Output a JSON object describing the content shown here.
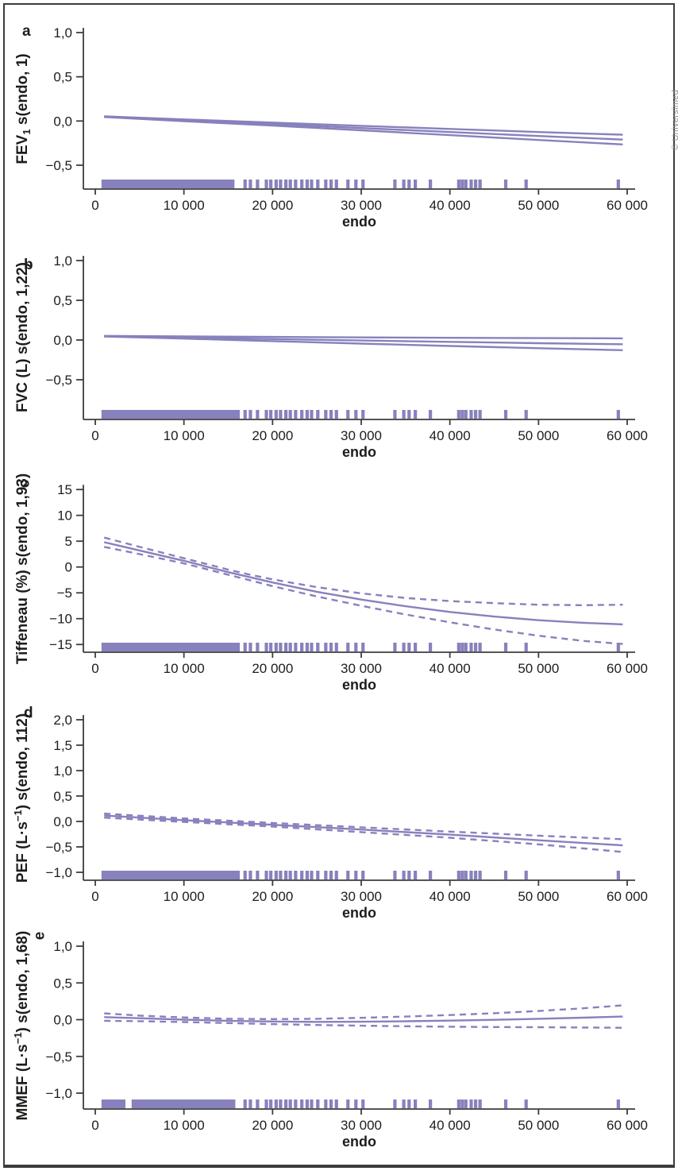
{
  "credit": "© Universimed",
  "colors": {
    "line": "#8781bd",
    "rug": "#8781bd",
    "axis": "#3d3d3d",
    "text": "#1d1d1b",
    "credit": "#8f8f8f"
  },
  "xlabel": "endo",
  "rug_ticks": [
    16900,
    17500,
    18300,
    19300,
    19800,
    20400,
    20900,
    21500,
    22000,
    22600,
    23300,
    23900,
    24400,
    25100,
    26000,
    26600,
    27200,
    28500,
    29400,
    30200,
    33800,
    34800,
    35400,
    36100,
    37800,
    41000,
    41400,
    41800,
    42400,
    42900,
    43400,
    46300,
    48600,
    59000
  ],
  "chart_data": [
    {
      "type": "line",
      "letter": "a",
      "ylabel": "FEV1 s(endo, 1)",
      "ylabel_parts": [
        {
          "t": "FEV"
        },
        {
          "t": "1",
          "v": "sub"
        },
        {
          "t": " s(endo, 1)"
        }
      ],
      "xlabel": "endo",
      "xlim": [
        0,
        60000
      ],
      "xticks": [
        0,
        10000,
        20000,
        30000,
        40000,
        50000,
        60000
      ],
      "xtick_labels": [
        "0",
        "10 000",
        "20 000",
        "30 000",
        "40 000",
        "50 000",
        "60 000"
      ],
      "yticks": [
        1.0,
        0.5,
        0.0,
        -0.5
      ],
      "ytick_labels": [
        "1,0",
        "0,5",
        "0,0",
        "−0,5"
      ],
      "series": [
        {
          "name": "upper-ci",
          "style": "solid",
          "x": [
            1000,
            10000,
            20000,
            30000,
            40000,
            50000,
            59500
          ],
          "y": [
            0.053,
            0.018,
            -0.018,
            -0.055,
            -0.09,
            -0.125,
            -0.155
          ]
        },
        {
          "name": "lower-ci",
          "style": "solid",
          "x": [
            1000,
            10000,
            20000,
            30000,
            40000,
            50000,
            59500
          ],
          "y": [
            0.045,
            -0.002,
            -0.052,
            -0.105,
            -0.16,
            -0.215,
            -0.265
          ]
        },
        {
          "name": "fit",
          "style": "solid",
          "x": [
            1000,
            10000,
            20000,
            30000,
            40000,
            50000,
            59500
          ],
          "y": [
            0.049,
            0.008,
            -0.035,
            -0.08,
            -0.125,
            -0.17,
            -0.21
          ]
        }
      ],
      "rug_segments": [
        [
          700,
          15700
        ]
      ]
    },
    {
      "type": "line",
      "letter": "b",
      "ylabel": "FVC (L) s(endo, 1,22)",
      "ylabel_parts": [
        {
          "t": "FVC (L) s(endo, 1,22)"
        }
      ],
      "xlabel": "endo",
      "xlim": [
        0,
        60000
      ],
      "xticks": [
        0,
        10000,
        20000,
        30000,
        40000,
        50000,
        60000
      ],
      "xtick_labels": [
        "0",
        "10 000",
        "20 000",
        "30 000",
        "40 000",
        "50 000",
        "60 000"
      ],
      "yticks": [
        1.0,
        0.5,
        0.0,
        -0.5
      ],
      "ytick_labels": [
        "1,0",
        "0,5",
        "0,0",
        "−0,5"
      ],
      "series": [
        {
          "name": "upper-ci",
          "style": "solid",
          "x": [
            1000,
            10000,
            20000,
            30000,
            40000,
            50000,
            59500
          ],
          "y": [
            0.052,
            0.045,
            0.039,
            0.033,
            0.028,
            0.024,
            0.021
          ]
        },
        {
          "name": "lower-ci",
          "style": "solid",
          "x": [
            1000,
            10000,
            20000,
            30000,
            40000,
            50000,
            59500
          ],
          "y": [
            0.044,
            0.018,
            -0.014,
            -0.045,
            -0.075,
            -0.103,
            -0.128
          ]
        },
        {
          "name": "fit",
          "style": "solid",
          "x": [
            1000,
            10000,
            20000,
            30000,
            40000,
            50000,
            59500
          ],
          "y": [
            0.048,
            0.031,
            0.012,
            -0.006,
            -0.023,
            -0.04,
            -0.053
          ]
        }
      ],
      "rug_segments": [
        [
          700,
          16300
        ]
      ]
    },
    {
      "type": "line",
      "letter": "c",
      "ylabel": "Tiffeneau (%) s(endo, 1,93)",
      "ylabel_parts": [
        {
          "t": "Tiffeneau (%) s(endo, 1,93)"
        }
      ],
      "xlabel": "endo",
      "xlim": [
        0,
        60000
      ],
      "xticks": [
        0,
        10000,
        20000,
        30000,
        40000,
        50000,
        60000
      ],
      "xtick_labels": [
        "0",
        "10 000",
        "20 000",
        "30 000",
        "40 000",
        "50 000",
        "60 000"
      ],
      "yticks": [
        15,
        10,
        5,
        0,
        -5,
        -10,
        -15
      ],
      "ytick_labels": [
        "15",
        "10",
        "5",
        "0",
        "−5",
        "−10",
        "−15"
      ],
      "series": [
        {
          "name": "upper-ci",
          "style": "dashed",
          "x": [
            1000,
            3000,
            5000,
            7500,
            10000,
            12500,
            15000,
            17500,
            20000,
            25000,
            30000,
            35000,
            40000,
            45000,
            50000,
            55000,
            59500
          ],
          "y": [
            5.7,
            4.8,
            3.9,
            2.8,
            1.7,
            0.6,
            -0.5,
            -1.5,
            -2.4,
            -3.9,
            -5.1,
            -6.0,
            -6.6,
            -7.0,
            -7.3,
            -7.4,
            -7.3
          ]
        },
        {
          "name": "lower-ci",
          "style": "dashed",
          "x": [
            1000,
            3000,
            5000,
            7500,
            10000,
            12500,
            15000,
            17500,
            20000,
            25000,
            30000,
            35000,
            40000,
            45000,
            50000,
            55000,
            59500
          ],
          "y": [
            3.9,
            3.2,
            2.5,
            1.6,
            0.7,
            -0.4,
            -1.5,
            -2.6,
            -3.7,
            -5.7,
            -7.5,
            -9.2,
            -10.7,
            -12.1,
            -13.3,
            -14.3,
            -14.9
          ]
        },
        {
          "name": "fit",
          "style": "solid",
          "x": [
            1000,
            3000,
            5000,
            7500,
            10000,
            12500,
            15000,
            17500,
            20000,
            25000,
            30000,
            35000,
            40000,
            45000,
            50000,
            55000,
            59500
          ],
          "y": [
            4.8,
            4.0,
            3.2,
            2.2,
            1.2,
            0.1,
            -1.0,
            -2.0,
            -3.0,
            -4.8,
            -6.3,
            -7.6,
            -8.7,
            -9.6,
            -10.3,
            -10.8,
            -11.1
          ]
        }
      ],
      "rug_segments": [
        [
          700,
          16300
        ]
      ]
    },
    {
      "type": "line",
      "letter": "d",
      "ylabel": "PEF (L·s−1) s(endo, 112)",
      "ylabel_parts": [
        {
          "t": "PEF (L·s"
        },
        {
          "t": "−1",
          "v": "sup"
        },
        {
          "t": ") s(endo, 112)"
        }
      ],
      "xlabel": "endo",
      "xlim": [
        0,
        60000
      ],
      "xticks": [
        0,
        10000,
        20000,
        30000,
        40000,
        50000,
        60000
      ],
      "xtick_labels": [
        "0",
        "10 000",
        "20 000",
        "30 000",
        "40 000",
        "50 000",
        "60 000"
      ],
      "yticks": [
        2.0,
        1.5,
        1.0,
        0.5,
        0.0,
        -0.5,
        -1.0
      ],
      "ytick_labels": [
        "2,0",
        "1,5",
        "1,0",
        "0,5",
        "0,0",
        "−0,5",
        "−1,0"
      ],
      "series": [
        {
          "name": "upper-ci",
          "style": "dashed",
          "x": [
            1000,
            10000,
            20000,
            30000,
            40000,
            50000,
            59500
          ],
          "y": [
            0.155,
            0.06,
            -0.03,
            -0.115,
            -0.2,
            -0.28,
            -0.35
          ]
        },
        {
          "name": "lower-ci",
          "style": "dashed",
          "x": [
            1000,
            10000,
            20000,
            30000,
            40000,
            50000,
            59500
          ],
          "y": [
            0.075,
            -0.01,
            -0.1,
            -0.21,
            -0.32,
            -0.45,
            -0.6
          ]
        },
        {
          "name": "fit",
          "style": "solid",
          "x": [
            1000,
            10000,
            20000,
            30000,
            40000,
            50000,
            59500
          ],
          "y": [
            0.115,
            0.025,
            -0.065,
            -0.16,
            -0.26,
            -0.37,
            -0.47
          ]
        }
      ],
      "rug_segments": [
        [
          700,
          16300
        ]
      ]
    },
    {
      "type": "line",
      "letter": "e",
      "ylabel": "MMEF (L·s−1) s(endo, 1,68)",
      "ylabel_parts": [
        {
          "t": "MMEF (L·s"
        },
        {
          "t": "−1",
          "v": "sup"
        },
        {
          "t": ") s(endo, 1,68)"
        }
      ],
      "xlabel": "endo",
      "xlim": [
        0,
        60000
      ],
      "xticks": [
        0,
        10000,
        20000,
        30000,
        40000,
        50000,
        60000
      ],
      "xtick_labels": [
        "0",
        "10 000",
        "20 000",
        "30 000",
        "40 000",
        "50 000",
        "60 000"
      ],
      "yticks": [
        1.0,
        0.5,
        0.0,
        -0.5,
        -1.0
      ],
      "ytick_labels": [
        "1,0",
        "0,5",
        "0,0",
        "−0,5",
        "−1,0"
      ],
      "series": [
        {
          "name": "upper-ci",
          "style": "dashed",
          "x": [
            1000,
            5000,
            10000,
            15000,
            20000,
            25000,
            30000,
            35000,
            40000,
            45000,
            50000,
            55000,
            59500
          ],
          "y": [
            0.085,
            0.055,
            0.03,
            0.012,
            0.008,
            0.012,
            0.025,
            0.042,
            0.063,
            0.088,
            0.118,
            0.155,
            0.195
          ]
        },
        {
          "name": "lower-ci",
          "style": "dashed",
          "x": [
            1000,
            5000,
            10000,
            15000,
            20000,
            25000,
            30000,
            35000,
            40000,
            45000,
            50000,
            55000,
            59500
          ],
          "y": [
            -0.015,
            -0.02,
            -0.032,
            -0.046,
            -0.06,
            -0.072,
            -0.082,
            -0.09,
            -0.096,
            -0.1,
            -0.103,
            -0.107,
            -0.11
          ]
        },
        {
          "name": "fit",
          "style": "solid",
          "x": [
            1000,
            5000,
            10000,
            15000,
            20000,
            25000,
            30000,
            35000,
            40000,
            45000,
            50000,
            55000,
            59500
          ],
          "y": [
            0.035,
            0.02,
            0.0,
            -0.015,
            -0.025,
            -0.03,
            -0.028,
            -0.022,
            -0.013,
            -0.002,
            0.012,
            0.027,
            0.042
          ]
        }
      ],
      "rug_segments": [
        [
          700,
          3400
        ],
        [
          4100,
          15800
        ]
      ]
    }
  ]
}
